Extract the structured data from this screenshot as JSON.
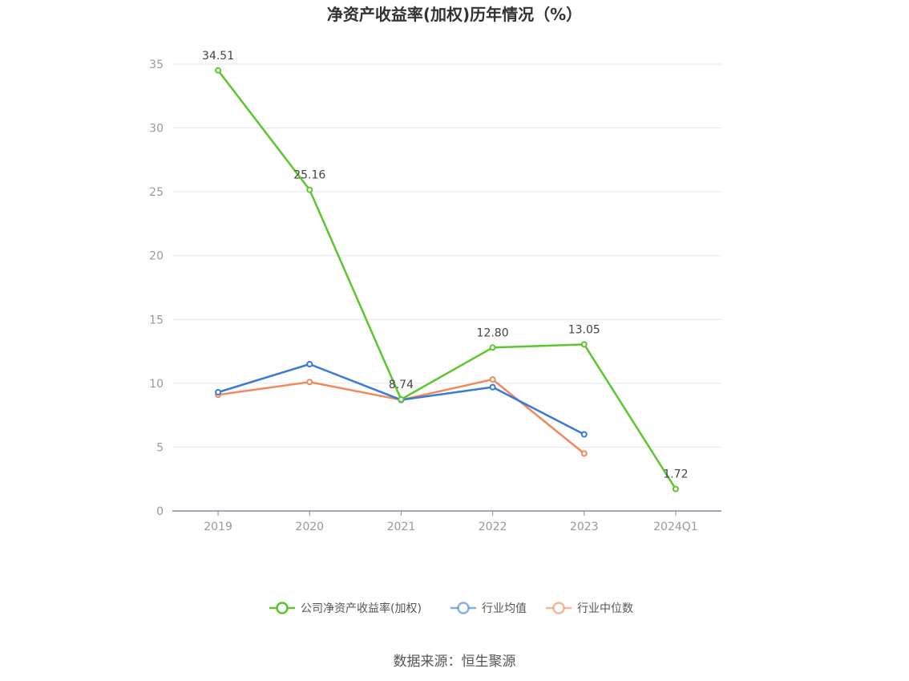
{
  "chart_data": {
    "type": "line",
    "title": "净资产收益率(加权)历年情况（%）",
    "categories": [
      "2019",
      "2020",
      "2021",
      "2022",
      "2023",
      "2024Q1"
    ],
    "ylim": [
      0,
      35
    ],
    "yticks": [
      "0",
      "5",
      "10",
      "15",
      "20",
      "25",
      "30",
      "35"
    ],
    "grid": true,
    "legend_position": "bottom",
    "series": [
      {
        "name": "公司净资产收益率(加权)",
        "color": "#5cc62d",
        "values": [
          34.51,
          25.16,
          8.74,
          12.8,
          13.05,
          1.72
        ],
        "labels": [
          "34.51",
          "25.16",
          "8.74",
          "12.80",
          "13.05",
          "1.72"
        ]
      },
      {
        "name": "行业均值",
        "color": "#3b78db",
        "values": [
          9.3,
          11.5,
          8.7,
          9.7,
          6.0,
          null
        ]
      },
      {
        "name": "行业中位数",
        "color": "#f0885a",
        "values": [
          9.1,
          10.1,
          8.7,
          10.3,
          4.5,
          null
        ]
      }
    ],
    "source": "数据来源：恒生聚源"
  }
}
